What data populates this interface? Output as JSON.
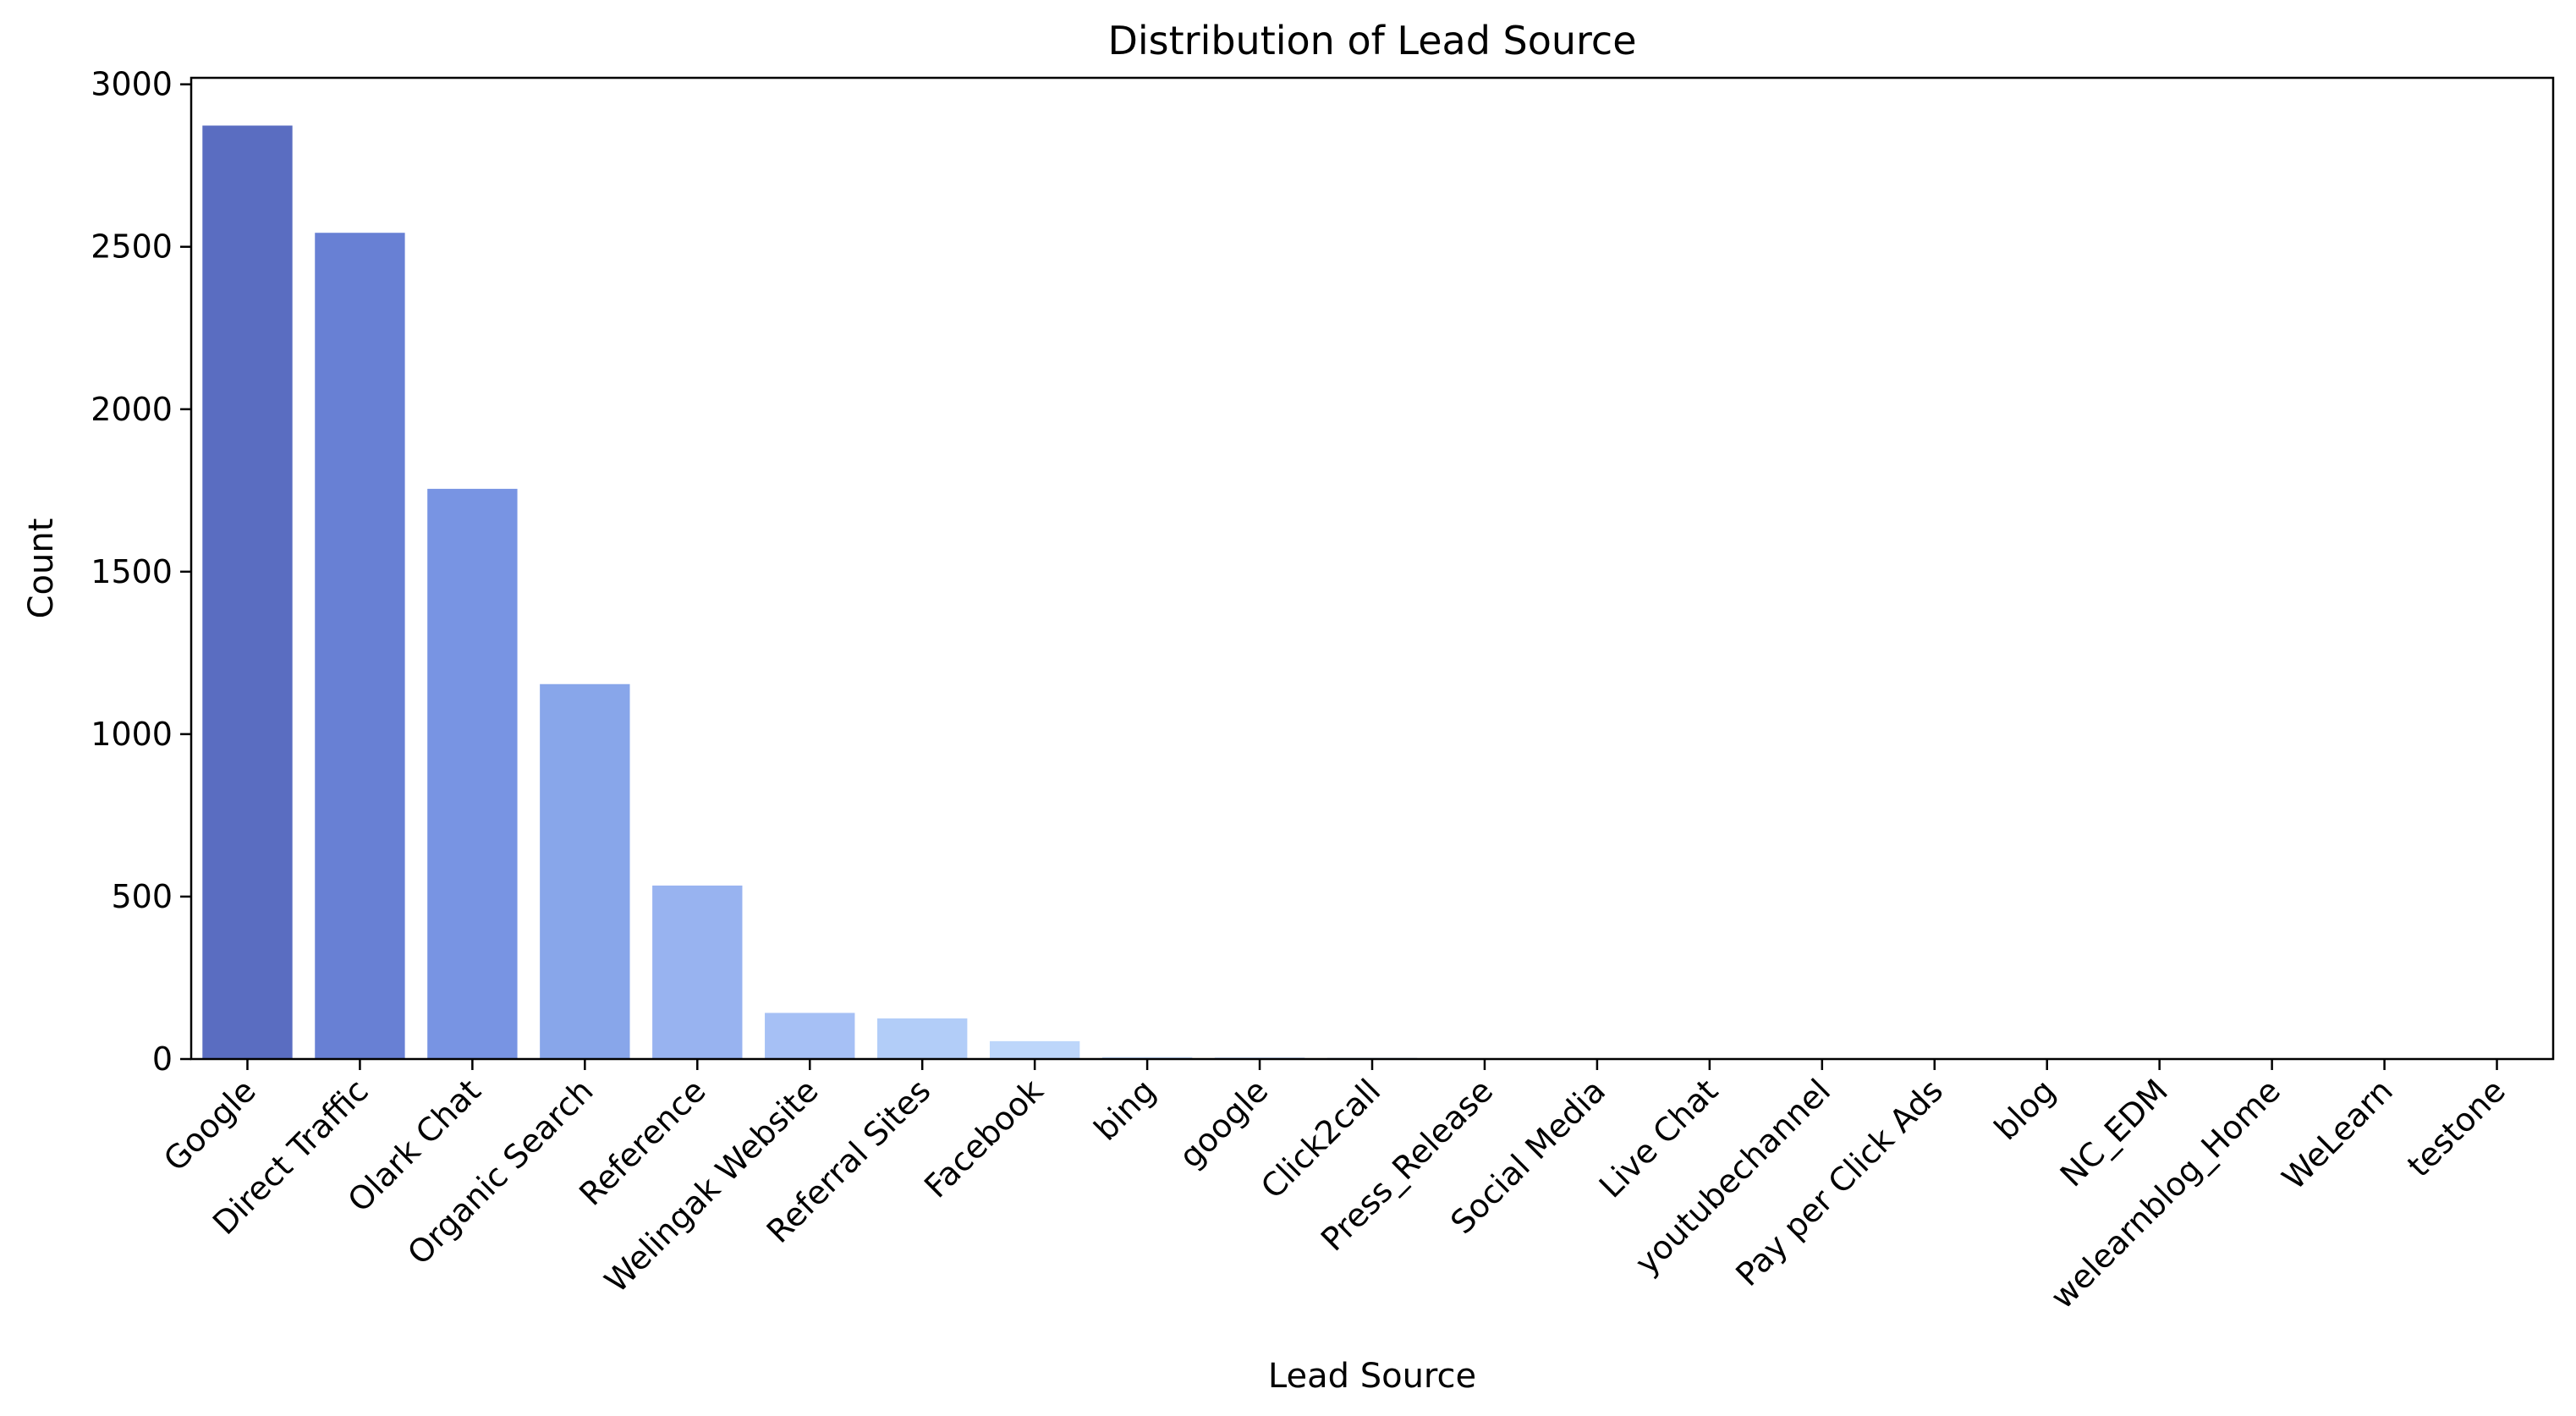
{
  "chart_data": {
    "type": "bar",
    "title": "Distribution of Lead Source",
    "xlabel": "Lead Source",
    "ylabel": "Count",
    "ylim": [
      0,
      3020
    ],
    "yticks": [
      0,
      500,
      1000,
      1500,
      2000,
      2500,
      3000
    ],
    "grid": false,
    "legend": "none",
    "categories": [
      "Google",
      "Direct Traffic",
      "Olark Chat",
      "Organic Search",
      "Reference",
      "Welingak Website",
      "Referral Sites",
      "Facebook",
      "bing",
      "google",
      "Click2call",
      "Press_Release",
      "Social Media",
      "Live Chat",
      "youtubechannel",
      "Pay per Click Ads",
      "blog",
      "NC_EDM",
      "welearnblog_Home",
      "WeLearn",
      "testone"
    ],
    "values": [
      2873,
      2543,
      1755,
      1154,
      534,
      142,
      125,
      55,
      6,
      5,
      4,
      2,
      2,
      2,
      1,
      1,
      1,
      1,
      1,
      1,
      1
    ],
    "colors": [
      "#5a6dc1",
      "#6880d4",
      "#7894e3",
      "#88a6ea",
      "#98b3f0",
      "#a6c0f5",
      "#b2cdf8",
      "#bdd6fa",
      "#c5dbfa",
      "#c9dcf9",
      "#cfdcf4",
      "#d5dbef",
      "#dad9ea",
      "#dcd5e3",
      "#ddd0dc",
      "#dec9d3",
      "#ddc2ca",
      "#dbbac0",
      "#d8b0b5",
      "#d4a5aa",
      "#cf9a9f"
    ]
  }
}
